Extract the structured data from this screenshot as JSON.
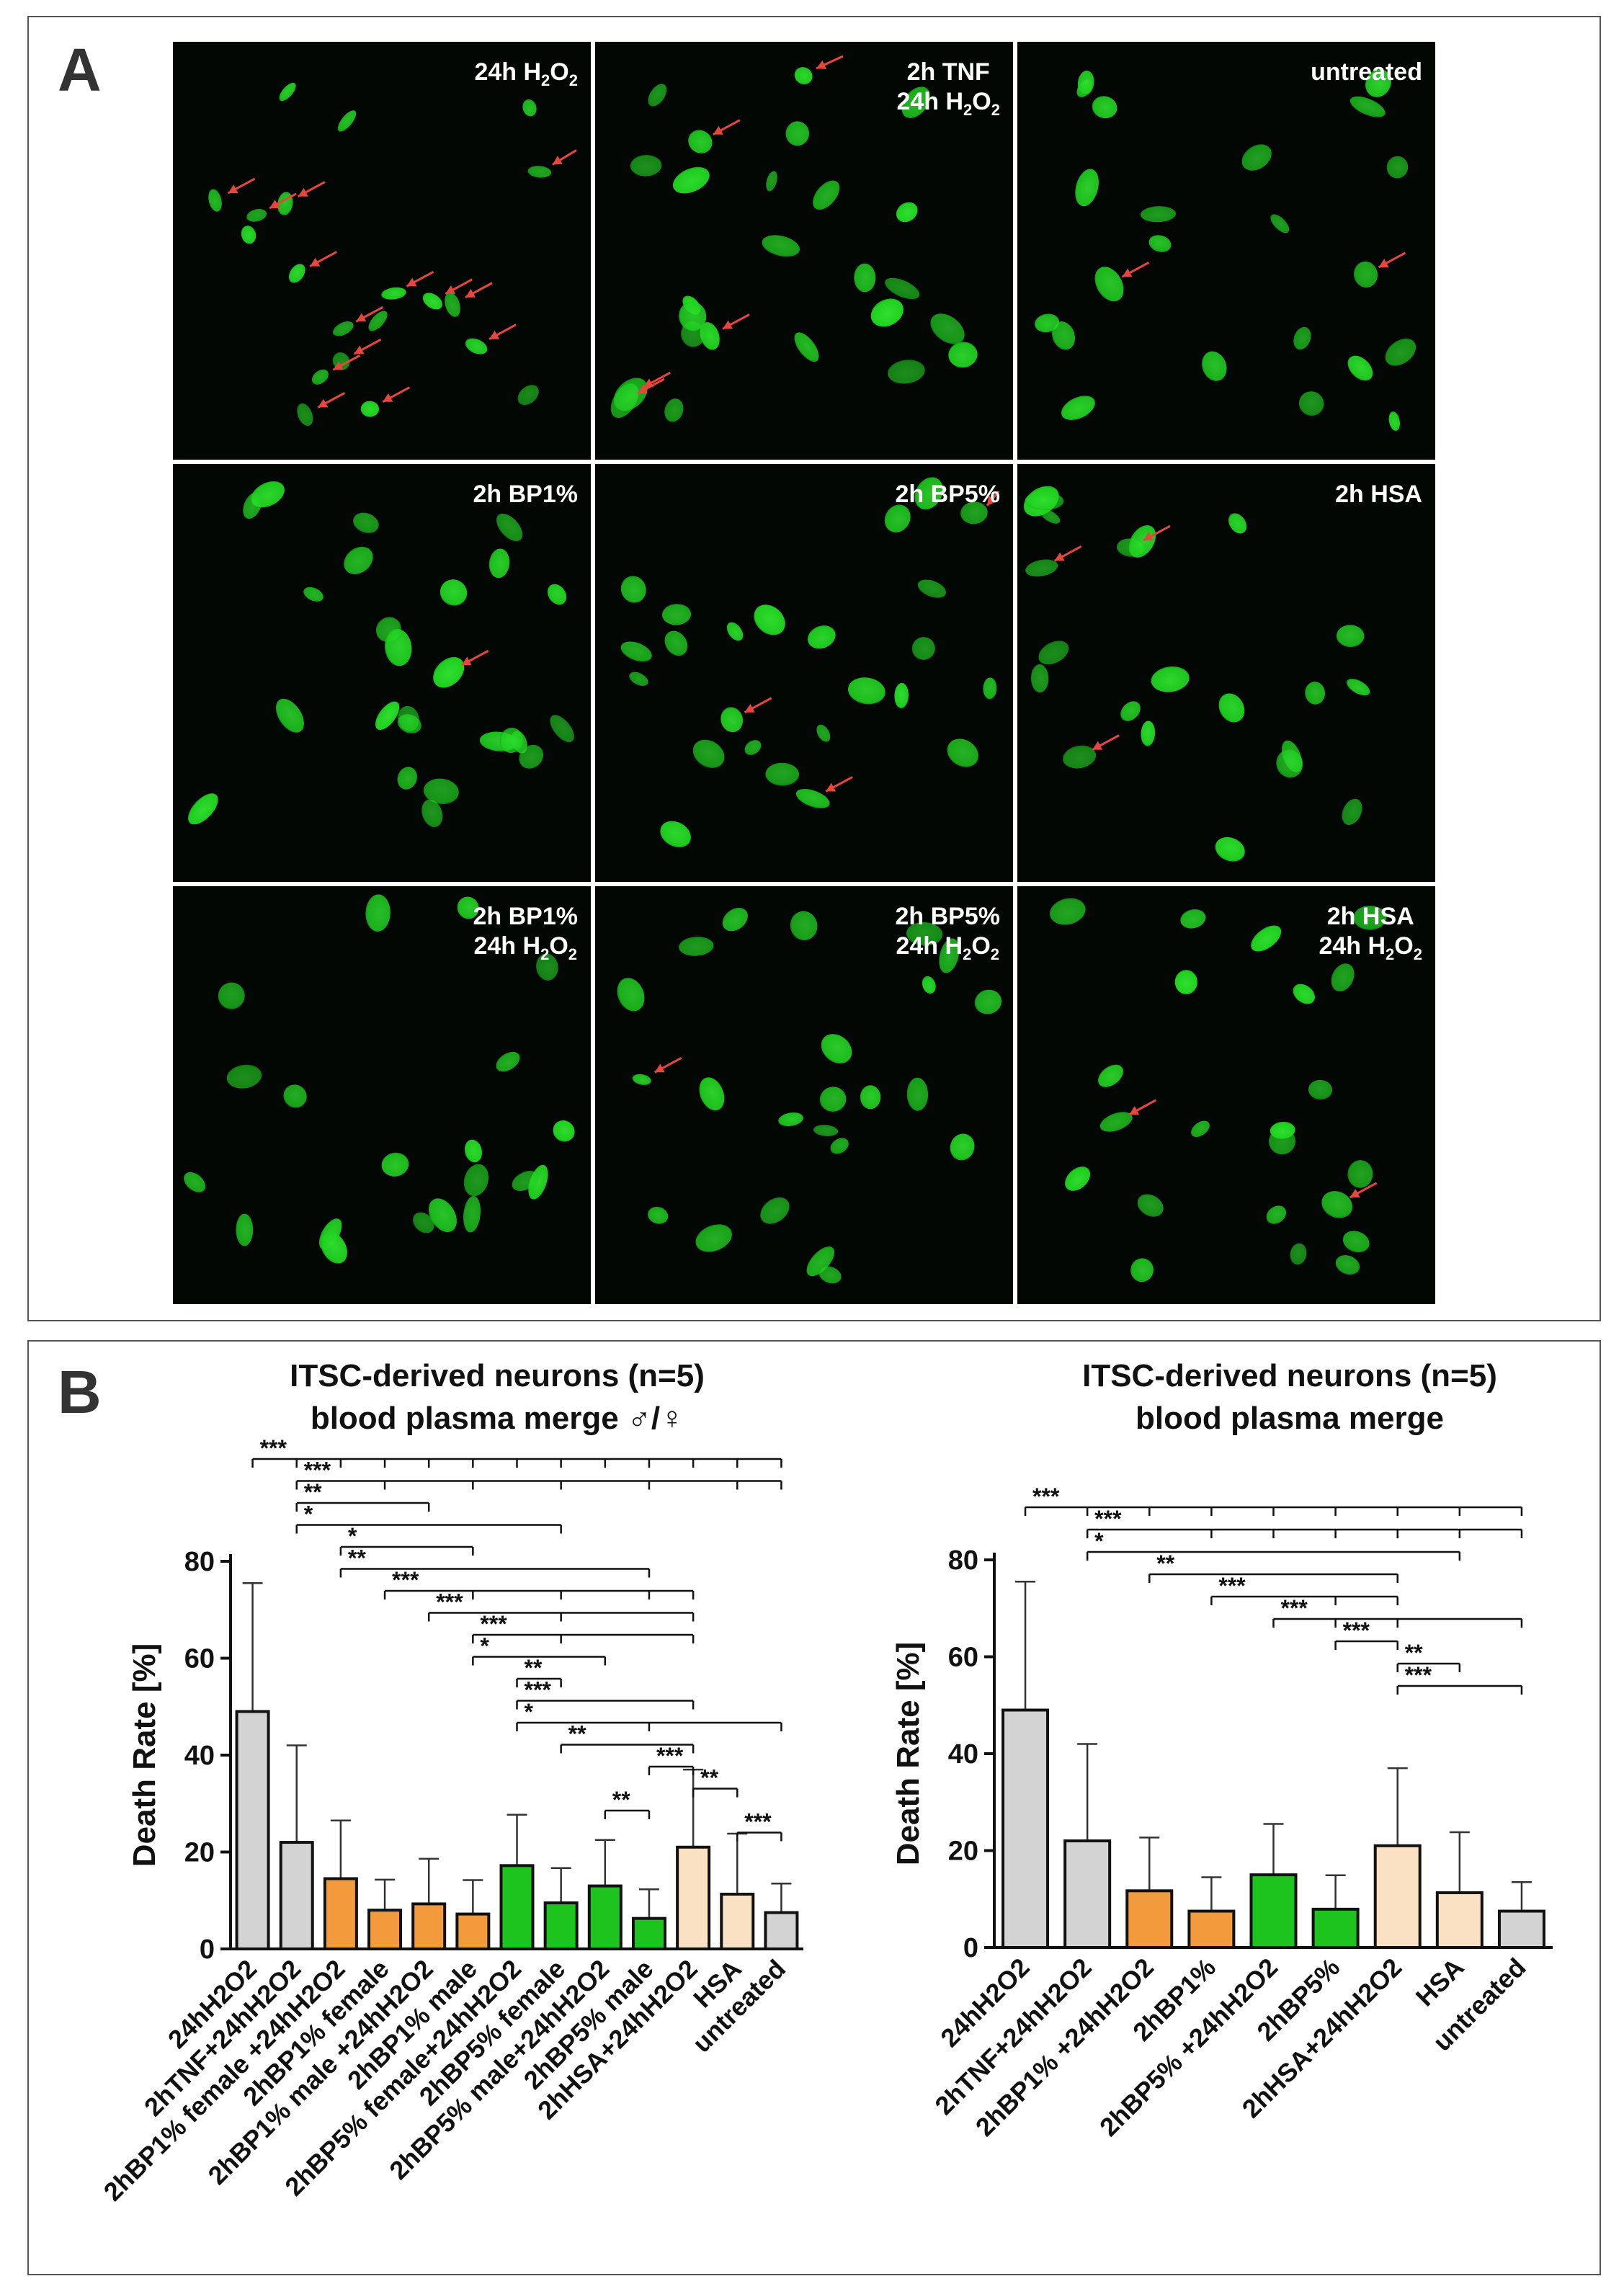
{
  "panel_a": {
    "letter": "A",
    "tiles": [
      {
        "lines": [
          "24h H",
          "O"
        ],
        "subs": [
          "2",
          "2"
        ],
        "label_html": "24h H<sub>2</sub>O<sub>2</sub>"
      },
      {
        "label_html": "2h TNF<br>24h H<sub>2</sub>O<sub>2</sub>"
      },
      {
        "label_html": "untreated"
      },
      {
        "label_html": "2h BP1%"
      },
      {
        "label_html": "2h BP5%"
      },
      {
        "label_html": "2h HSA"
      },
      {
        "label_html": "2h BP1%<br>24h H<sub>2</sub>O<sub>2</sub>"
      },
      {
        "label_html": "2h BP5%<br>24h H<sub>2</sub>O<sub>2</sub>"
      },
      {
        "label_html": "2h HSA<br>24h H<sub>2</sub>O<sub>2</sub>"
      }
    ],
    "colors": {
      "nucleus": "#1fd11f",
      "background": "#020703",
      "arrow": "#e8463c"
    }
  },
  "panel_b": {
    "letter": "B",
    "colors": {
      "grey": "#d3d3d3",
      "orange": "#f39a3c",
      "green": "#1ec41e",
      "peach": "#fbe1c3"
    }
  },
  "chart_data": [
    {
      "type": "bar",
      "title_lines": [
        "ITSC-derived neurons (n=5)",
        "blood plasma merge ♂/♀"
      ],
      "ylabel": "Death Rate [%]",
      "ylim": [
        0,
        80
      ],
      "yticks": [
        "0",
        "20",
        "40",
        "60",
        "80"
      ],
      "categories": [
        "24hH2O2",
        "2hTNF+24hH2O2",
        "2hBP1% female +24hH2O2",
        "2hBP1% female",
        "2hBP1% male +24hH2O2",
        "2hBP1% male",
        "2hBP5% female+24hH2O2",
        "2hBP5% female",
        "2hBP5% male+24hH2O2",
        "2hBP5% male",
        "2hHSA+24hH2O2",
        "HSA",
        "untreated"
      ],
      "values": [
        49,
        22,
        14.5,
        8,
        9.3,
        7.2,
        17.2,
        9.5,
        13,
        6.3,
        21,
        11.3,
        7.5
      ],
      "errors": [
        26.5,
        20,
        12,
        6.3,
        9.3,
        7,
        10.5,
        7.2,
        9.5,
        6,
        16,
        12.5,
        6
      ],
      "colors": [
        "grey",
        "grey",
        "orange",
        "orange",
        "orange",
        "orange",
        "green",
        "green",
        "green",
        "green",
        "peach",
        "peach",
        "grey"
      ],
      "significance": [
        {
          "from": 0,
          "to": [
            1,
            2,
            3,
            4,
            5,
            6,
            7,
            8,
            9,
            10,
            11,
            12
          ],
          "stars": "***"
        },
        {
          "from": 1,
          "to": [
            3,
            5,
            7,
            9,
            11,
            12
          ],
          "stars": "***"
        },
        {
          "from": 1,
          "to": [
            4
          ],
          "stars": "**"
        },
        {
          "from": 1,
          "to": [
            7
          ],
          "stars": "*"
        },
        {
          "from": 2,
          "to": [
            5
          ],
          "stars": "*"
        },
        {
          "from": 2,
          "to": [
            9
          ],
          "stars": "**"
        },
        {
          "from": 3,
          "to": [
            5,
            7,
            9,
            10
          ],
          "stars": "***"
        },
        {
          "from": 4,
          "to": [
            7,
            10
          ],
          "stars": "***"
        },
        {
          "from": 5,
          "to": [
            7,
            10
          ],
          "stars": "***"
        },
        {
          "from": 5,
          "to": [
            8
          ],
          "stars": "*"
        },
        {
          "from": 6,
          "to": [
            7
          ],
          "stars": "**"
        },
        {
          "from": 6,
          "to": [
            10
          ],
          "stars": "***"
        },
        {
          "from": 6,
          "to": [
            9,
            12
          ],
          "stars": "*"
        },
        {
          "from": 7,
          "to": [
            10
          ],
          "stars": "**"
        },
        {
          "from": 9,
          "to": [
            10
          ],
          "stars": "***"
        },
        {
          "from": 10,
          "to": [
            11
          ],
          "stars": "**"
        },
        {
          "from": 8,
          "to": [
            9
          ],
          "stars": "**"
        },
        {
          "from": 11,
          "to": [
            12
          ],
          "stars": "***"
        }
      ]
    },
    {
      "type": "bar",
      "title_lines": [
        "ITSC-derived neurons (n=5)",
        "blood plasma merge"
      ],
      "ylabel": "Death Rate [%]",
      "ylim": [
        0,
        80
      ],
      "yticks": [
        "0",
        "20",
        "40",
        "60",
        "80"
      ],
      "categories": [
        "24hH2O2",
        "2hTNF+24hH2O2",
        "2hBP1% +24hH2O2",
        "2hBP1%",
        "2hBP5% +24hH2O2",
        "2hBP5%",
        "2hHSA+24hH2O2",
        "HSA",
        "untreated"
      ],
      "values": [
        49,
        22,
        11.7,
        7.5,
        15,
        7.9,
        21,
        11.3,
        7.5
      ],
      "errors": [
        26.5,
        20,
        11,
        7,
        10.5,
        7,
        16,
        12.5,
        6
      ],
      "colors": [
        "grey",
        "grey",
        "orange",
        "orange",
        "green",
        "green",
        "peach",
        "peach",
        "grey"
      ],
      "significance": [
        {
          "from": 0,
          "to": [
            1,
            2,
            3,
            4,
            5,
            6,
            7,
            8
          ],
          "stars": "***"
        },
        {
          "from": 1,
          "to": [
            3,
            4,
            5,
            6,
            7,
            8
          ],
          "stars": "***"
        },
        {
          "from": 1,
          "to": [
            7
          ],
          "stars": "*"
        },
        {
          "from": 2,
          "to": [
            6
          ],
          "stars": "**"
        },
        {
          "from": 3,
          "to": [
            5,
            6
          ],
          "stars": "***"
        },
        {
          "from": 4,
          "to": [
            5,
            6,
            8
          ],
          "stars": "***"
        },
        {
          "from": 5,
          "to": [
            6
          ],
          "stars": "***"
        },
        {
          "from": 6,
          "to": [
            7
          ],
          "stars": "**"
        },
        {
          "from": 6,
          "to": [
            8
          ],
          "stars": "***"
        }
      ]
    }
  ]
}
